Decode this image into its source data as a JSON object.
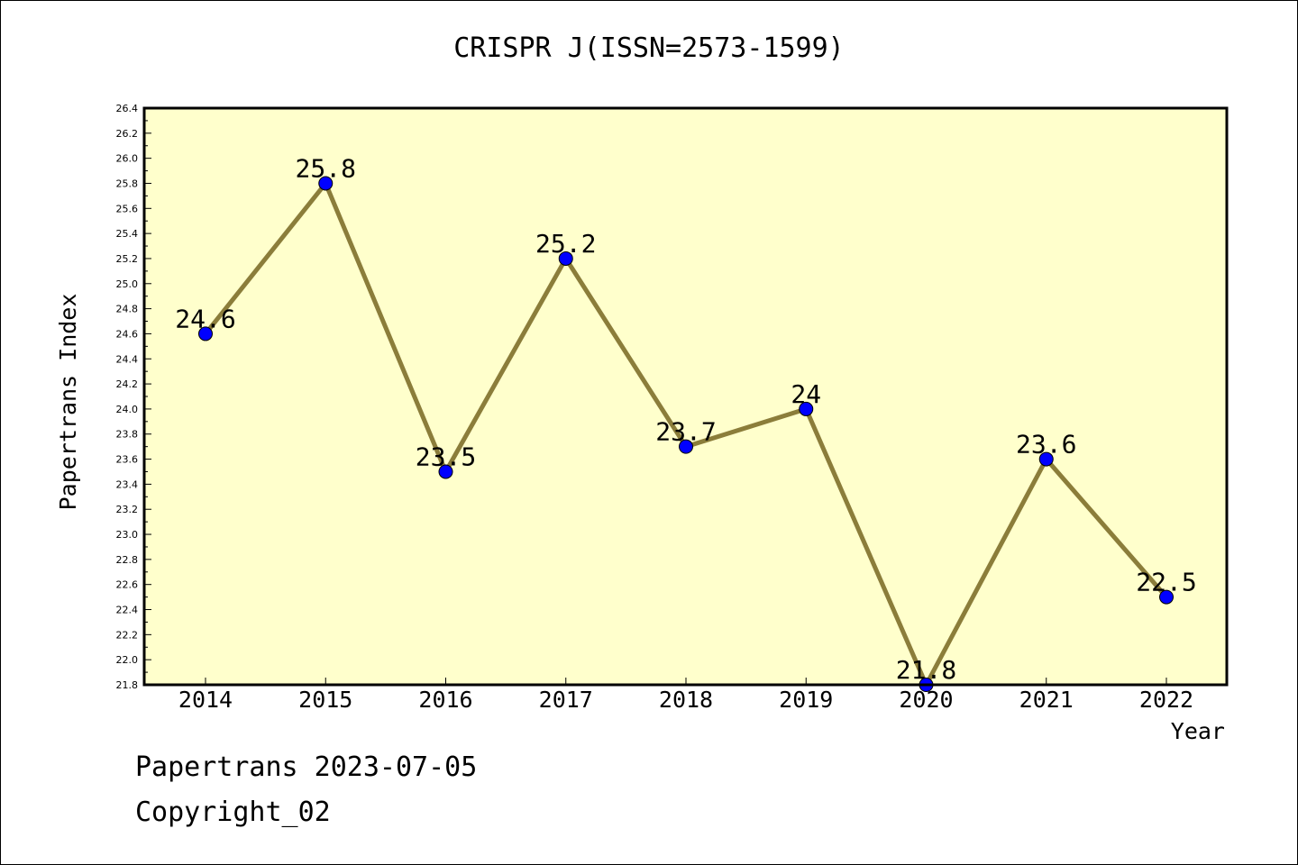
{
  "footer": {
    "line1": "Papertrans 2023-07-05",
    "line2": "Copyright_02"
  },
  "colors": {
    "plot_background": "#ffffcc",
    "line": "#8b7d3a",
    "marker": "#0000ff",
    "axes": "#000000"
  },
  "chart_data": {
    "type": "line",
    "title": "CRISPR J(ISSN=2573-1599)",
    "xlabel": "Year",
    "ylabel": "Papertrans Index",
    "categories": [
      "2014",
      "2015",
      "2016",
      "2017",
      "2018",
      "2019",
      "2020",
      "2021",
      "2022"
    ],
    "series": [
      {
        "values": [
          24.6,
          25.8,
          23.5,
          25.2,
          23.7,
          24.0,
          21.8,
          23.6,
          22.5
        ],
        "labels": [
          "24.6",
          "25.8",
          "23.5",
          "25.2",
          "23.7",
          "24",
          "21.8",
          "23.6",
          "22.5"
        ]
      }
    ],
    "ylim": [
      21.8,
      26.4
    ],
    "yticks": [
      "21.8",
      "22.0",
      "22.2",
      "22.4",
      "22.6",
      "22.8",
      "23.0",
      "23.2",
      "23.4",
      "23.6",
      "23.8",
      "24.0",
      "24.2",
      "24.4",
      "24.6",
      "24.8",
      "25.0",
      "25.2",
      "25.4",
      "25.6",
      "25.8",
      "26.0",
      "26.2",
      "26.4"
    ],
    "grid": false,
    "legend": "none"
  }
}
